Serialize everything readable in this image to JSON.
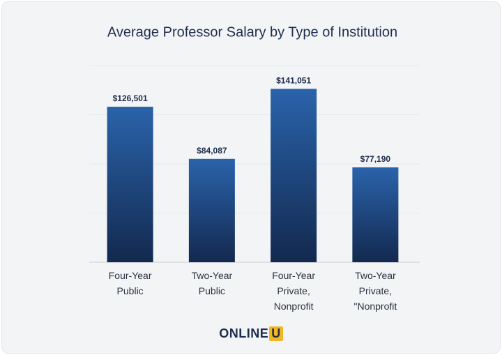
{
  "chart_data": {
    "type": "bar",
    "title": "Average Professor Salary by Type of Institution",
    "categories": [
      "Four-Year\nPublic",
      "Two-Year\nPublic",
      "Four-Year\nPrivate,\nNonprofit",
      "Two-Year\nPrivate,\n\"Nonprofit"
    ],
    "values": [
      126501,
      84087,
      141051,
      77190
    ],
    "value_labels": [
      "$126,501",
      "$84,087",
      "$141,051",
      "$77,190"
    ],
    "color": "#2a63aa",
    "ylim": [
      0,
      160000
    ],
    "yticks": [
      0,
      40000,
      80000,
      120000,
      160000
    ],
    "grid": true
  },
  "logo": {
    "text": "ONLINE",
    "badge": "U"
  }
}
